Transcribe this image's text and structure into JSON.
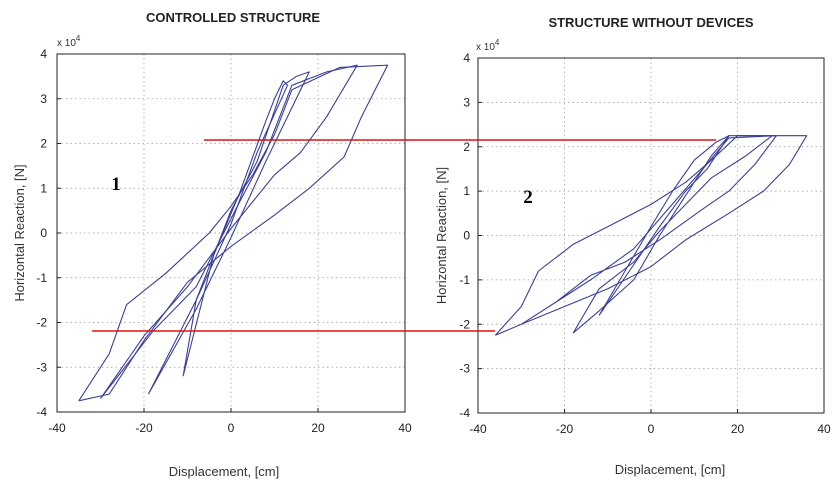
{
  "colors": {
    "curve": "#3b3f9a",
    "ref_line": "#e01010",
    "axis": "#222222"
  },
  "chart_data": [
    {
      "type": "line",
      "title": "CONTROLLED STRUCTURE",
      "xlabel": "Displacement, [cm]",
      "ylabel": "Horizontal Reaction, [N]",
      "y_multiplier": "x 10",
      "y_multiplier_exp": "4",
      "panel_label": "1",
      "xlim": [
        -40,
        40
      ],
      "ylim": [
        -4,
        4
      ],
      "xticks": [
        "-40",
        "-20",
        "0",
        "20",
        "40"
      ],
      "yticks": [
        "4",
        "3",
        "2",
        "1",
        "0",
        "-1",
        "-2",
        "-3",
        "-4"
      ],
      "grid": true,
      "series": [
        {
          "values": [
            [
              -11,
              -3.2
            ],
            [
              -4,
              -0.5
            ],
            [
              2,
              0.9
            ],
            [
              8,
              2.5
            ],
            [
              10,
              3.0
            ],
            [
              12,
              3.4
            ],
            [
              13,
              3.3
            ],
            [
              6,
              1.8
            ],
            [
              0,
              0.2
            ],
            [
              -8,
              -1.5
            ],
            [
              -11,
              -3.2
            ]
          ]
        },
        {
          "values": [
            [
              -19,
              -3.6
            ],
            [
              -8,
              -1.5
            ],
            [
              0,
              0.5
            ],
            [
              6,
              1.6
            ],
            [
              12,
              3.3
            ],
            [
              15,
              3.5
            ],
            [
              18,
              3.6
            ],
            [
              13,
              2.6
            ],
            [
              8,
              1.6
            ],
            [
              0,
              -0.1
            ],
            [
              -8,
              -1.7
            ],
            [
              -19,
              -3.6
            ]
          ]
        },
        {
          "values": [
            [
              -30,
              -3.7
            ],
            [
              -18,
              -2.2
            ],
            [
              -8,
              -1.2
            ],
            [
              2,
              0.7
            ],
            [
              8,
              1.8
            ],
            [
              14,
              3.3
            ],
            [
              22,
              3.6
            ],
            [
              29,
              3.75
            ],
            [
              22,
              2.6
            ],
            [
              16,
              1.8
            ],
            [
              10,
              1.3
            ],
            [
              0,
              0.1
            ],
            [
              -10,
              -1.2
            ],
            [
              -20,
              -2.3
            ],
            [
              -30,
              -3.7
            ]
          ]
        },
        {
          "values": [
            [
              -35,
              -3.75
            ],
            [
              -28,
              -2.7
            ],
            [
              -24,
              -1.6
            ],
            [
              -15,
              -0.9
            ],
            [
              -5,
              0
            ],
            [
              0,
              0.6
            ],
            [
              5,
              1.3
            ],
            [
              10,
              2.2
            ],
            [
              14,
              3.2
            ],
            [
              25,
              3.7
            ],
            [
              36,
              3.75
            ],
            [
              30,
              2.6
            ],
            [
              26,
              1.7
            ],
            [
              18,
              1.0
            ],
            [
              10,
              0.4
            ],
            [
              0,
              -0.3
            ],
            [
              -10,
              -1.1
            ],
            [
              -20,
              -2.4
            ],
            [
              -28,
              -3.6
            ],
            [
              -35,
              -3.75
            ]
          ]
        }
      ]
    },
    {
      "type": "line",
      "title": "STRUCTURE WITHOUT DEVICES",
      "xlabel": "Displacement, [cm]",
      "ylabel": "Horizontal Reaction, [N]",
      "y_multiplier": "x 10",
      "y_multiplier_exp": "4",
      "panel_label": "2",
      "xlim": [
        -40,
        40
      ],
      "ylim": [
        -4,
        4
      ],
      "xticks": [
        "-40",
        "-20",
        "0",
        "20",
        "40"
      ],
      "yticks": [
        "4",
        "3",
        "2",
        "1",
        "0",
        "-1",
        "-2",
        "-3",
        "-4"
      ],
      "grid": true,
      "series": [
        {
          "values": [
            [
              -12,
              -1.8
            ],
            [
              -6,
              -0.8
            ],
            [
              0,
              0.2
            ],
            [
              5,
              1.0
            ],
            [
              10,
              1.7
            ],
            [
              15,
              2.1
            ],
            [
              18,
              2.25
            ],
            [
              13,
              1.5
            ],
            [
              8,
              1.0
            ],
            [
              2,
              0.2
            ],
            [
              -5,
              -0.8
            ],
            [
              -12,
              -1.8
            ]
          ]
        },
        {
          "values": [
            [
              -18,
              -2.2
            ],
            [
              -12,
              -1.7
            ],
            [
              -4,
              -1.0
            ],
            [
              2,
              0
            ],
            [
              8,
              0.9
            ],
            [
              14,
              1.8
            ],
            [
              18,
              2.25
            ],
            [
              28,
              2.25
            ],
            [
              22,
              1.8
            ],
            [
              14,
              1.3
            ],
            [
              8,
              0.7
            ],
            [
              2,
              0.1
            ],
            [
              -4,
              -0.6
            ],
            [
              -12,
              -1.2
            ],
            [
              -18,
              -2.2
            ]
          ]
        },
        {
          "values": [
            [
              -30,
              -2.0
            ],
            [
              -22,
              -1.5
            ],
            [
              -14,
              -1.0
            ],
            [
              -4,
              -0.3
            ],
            [
              4,
              0.6
            ],
            [
              12,
              1.5
            ],
            [
              18,
              2.2
            ],
            [
              29,
              2.25
            ],
            [
              24,
              1.6
            ],
            [
              18,
              1.0
            ],
            [
              12,
              0.6
            ],
            [
              2,
              -0.1
            ],
            [
              -6,
              -0.6
            ],
            [
              -14,
              -0.9
            ],
            [
              -22,
              -1.5
            ],
            [
              -30,
              -2.0
            ]
          ]
        },
        {
          "values": [
            [
              -36,
              -2.25
            ],
            [
              -30,
              -1.6
            ],
            [
              -26,
              -0.8
            ],
            [
              -18,
              -0.2
            ],
            [
              -8,
              0.3
            ],
            [
              0,
              0.7
            ],
            [
              8,
              1.2
            ],
            [
              14,
              1.7
            ],
            [
              20,
              2.25
            ],
            [
              36,
              2.25
            ],
            [
              32,
              1.6
            ],
            [
              26,
              1.0
            ],
            [
              18,
              0.5
            ],
            [
              8,
              -0.1
            ],
            [
              0,
              -0.7
            ],
            [
              -10,
              -1.2
            ],
            [
              -20,
              -1.6
            ],
            [
              -30,
              -2.0
            ],
            [
              -36,
              -2.25
            ]
          ]
        }
      ]
    }
  ]
}
